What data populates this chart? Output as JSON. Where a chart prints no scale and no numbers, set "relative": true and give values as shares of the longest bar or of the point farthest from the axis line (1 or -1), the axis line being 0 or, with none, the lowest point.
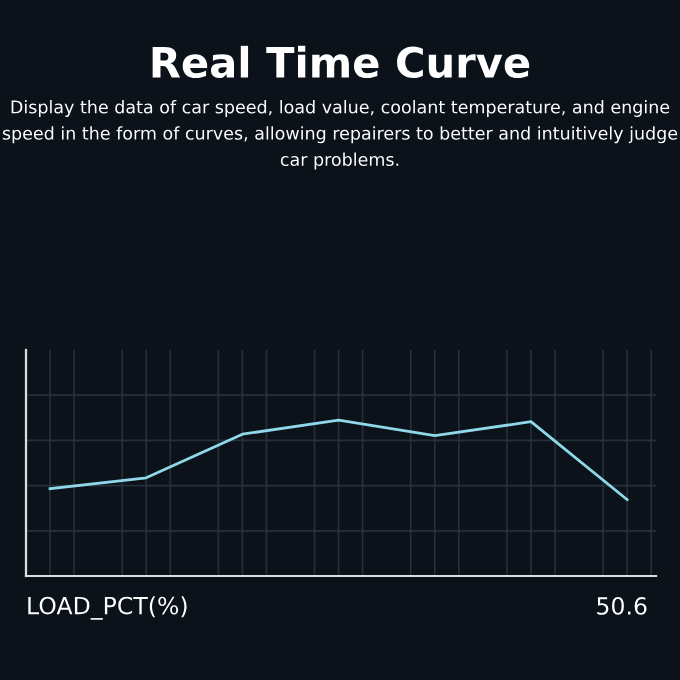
{
  "chart_data": {
    "type": "line",
    "title": "Real Time Curve",
    "subtitle": "Display the data of car speed, load value, coolant temperature, and engine speed in the form of curves, allowing repairers to better and intuitively judge car problems.",
    "xlabel": "LOAD_PCT(%)",
    "annotations": [
      "50.6"
    ],
    "relative": true,
    "categories": [
      null,
      null,
      null,
      null,
      null,
      null,
      null
    ],
    "series": [
      {
        "color": "#8fd8ea",
        "values": [
          0.56,
          0.63,
          0.91,
          1,
          0.9,
          0.99,
          0.49
        ]
      }
    ],
    "grid": true
  }
}
